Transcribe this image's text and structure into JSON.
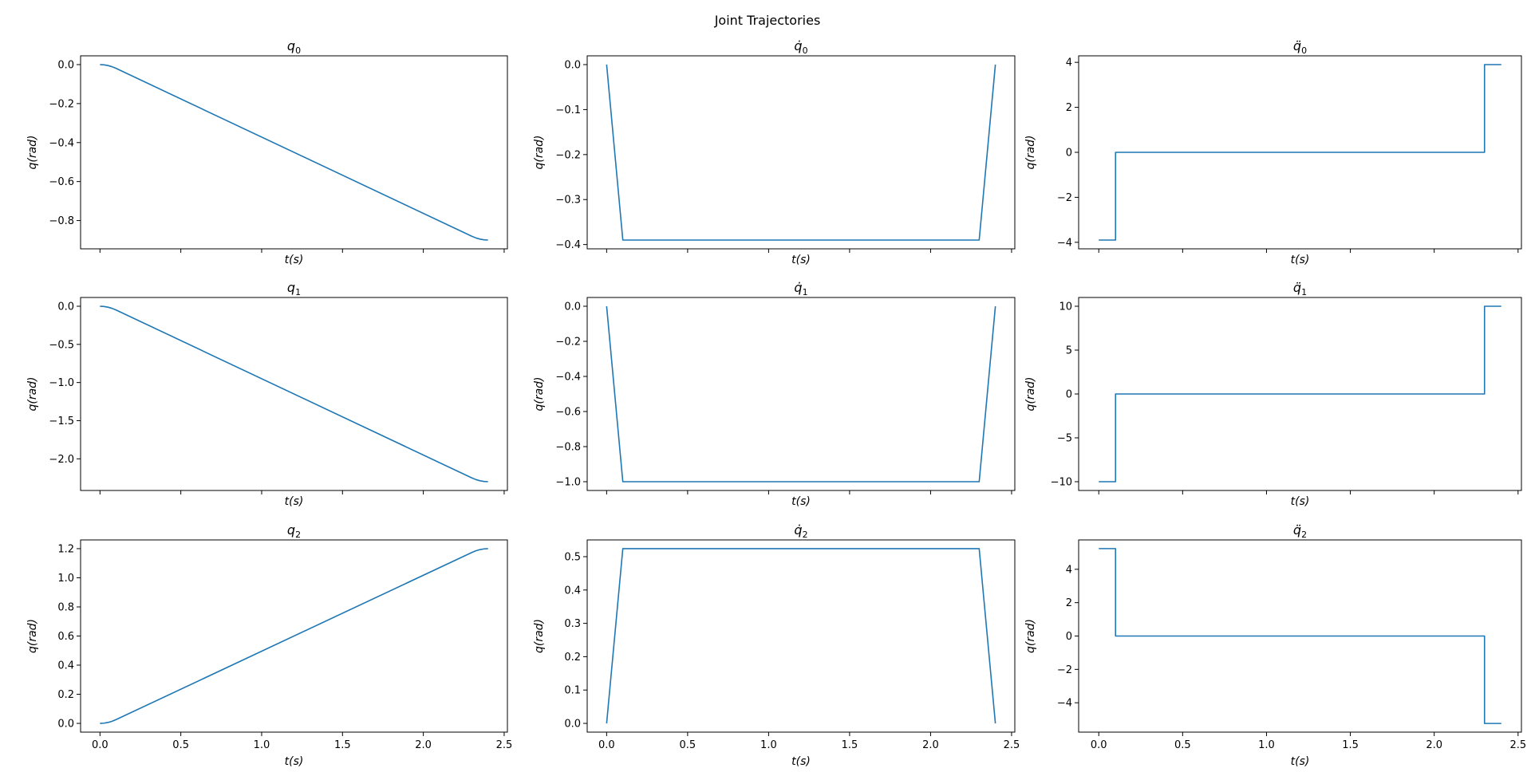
{
  "title": "Joint Trajectories",
  "style": {
    "line_color": "#1f77b4",
    "frame_color": "#000000",
    "background": "#ffffff"
  },
  "chart_data": [
    {
      "type": "line",
      "title": "q_0",
      "xlabel": "t(s)",
      "ylabel": "q(rad)",
      "xlim": [
        -0.12,
        2.52
      ],
      "ylim": [
        -0.945,
        0.045
      ],
      "yticks": [
        0.0,
        -0.2,
        -0.4,
        -0.6,
        -0.8
      ],
      "ytick_labels": [
        "0.0",
        "−0.2",
        "−0.4",
        "−0.6",
        "−0.8"
      ],
      "x": [
        0,
        0.025,
        0.05,
        0.075,
        0.1,
        2.3,
        2.325,
        2.35,
        2.375,
        2.4
      ],
      "values": [
        0,
        -0.00122,
        -0.00488,
        -0.01098,
        -0.01951,
        -0.8805,
        -0.88902,
        -0.89512,
        -0.89878,
        -0.9
      ]
    },
    {
      "type": "line",
      "title": "q̇_0",
      "xlabel": "t(s)",
      "ylabel": "q(rad)",
      "xlim": [
        -0.12,
        2.52
      ],
      "ylim": [
        -0.4095,
        0.0195
      ],
      "yticks": [
        0.0,
        -0.1,
        -0.2,
        -0.3,
        -0.4
      ],
      "ytick_labels": [
        "0.0",
        "−0.1",
        "−0.2",
        "−0.3",
        "−0.4"
      ],
      "x": [
        0,
        0.1,
        2.3,
        2.4
      ],
      "values": [
        0,
        -0.39,
        -0.39,
        0
      ]
    },
    {
      "type": "line",
      "title": "q̈_0",
      "xlabel": "t(s)",
      "ylabel": "q(rad)",
      "xlim": [
        -0.12,
        2.52
      ],
      "ylim": [
        -4.29,
        4.29
      ],
      "yticks": [
        4,
        2,
        0,
        -2,
        -4
      ],
      "ytick_labels": [
        "4",
        "2",
        "0",
        "−2",
        "−4"
      ],
      "x": [
        0,
        0.1,
        0.1,
        2.3,
        2.3,
        2.4
      ],
      "values": [
        -3.9,
        -3.9,
        0,
        0,
        3.9,
        3.9
      ]
    },
    {
      "type": "line",
      "title": "q_1",
      "xlabel": "t(s)",
      "ylabel": "q(rad)",
      "xlim": [
        -0.12,
        2.52
      ],
      "ylim": [
        -2.415,
        0.115
      ],
      "yticks": [
        0.0,
        -0.5,
        -1.0,
        -1.5,
        -2.0
      ],
      "ytick_labels": [
        "0.0",
        "−0.5",
        "−1.0",
        "−1.5",
        "−2.0"
      ],
      "x": [
        0,
        0.025,
        0.05,
        0.075,
        0.1,
        2.3,
        2.325,
        2.35,
        2.375,
        2.4
      ],
      "values": [
        0,
        -0.00313,
        -0.0125,
        -0.02813,
        -0.05,
        -2.25,
        -2.27188,
        -2.2875,
        -2.29688,
        -2.3
      ]
    },
    {
      "type": "line",
      "title": "q̇_1",
      "xlabel": "t(s)",
      "ylabel": "q(rad)",
      "xlim": [
        -0.12,
        2.52
      ],
      "ylim": [
        -1.05,
        0.05
      ],
      "yticks": [
        0.0,
        -0.2,
        -0.4,
        -0.6,
        -0.8,
        -1.0
      ],
      "ytick_labels": [
        "0.0",
        "−0.2",
        "−0.4",
        "−0.6",
        "−0.8",
        "−1.0"
      ],
      "x": [
        0,
        0.1,
        2.3,
        2.4
      ],
      "values": [
        0,
        -1.0,
        -1.0,
        0
      ]
    },
    {
      "type": "line",
      "title": "q̈_1",
      "xlabel": "t(s)",
      "ylabel": "q(rad)",
      "xlim": [
        -0.12,
        2.52
      ],
      "ylim": [
        -11,
        11
      ],
      "yticks": [
        10,
        5,
        0,
        -5,
        -10
      ],
      "ytick_labels": [
        "10",
        "5",
        "0",
        "−5",
        "−10"
      ],
      "x": [
        0,
        0.1,
        0.1,
        2.3,
        2.3,
        2.4
      ],
      "values": [
        -10,
        -10,
        0,
        0,
        10,
        10
      ]
    },
    {
      "type": "line",
      "title": "q_2",
      "xlabel": "t(s)",
      "ylabel": "q(rad)",
      "xlim": [
        -0.12,
        2.52
      ],
      "ylim": [
        -0.06,
        1.26
      ],
      "yticks": [
        0.0,
        0.2,
        0.4,
        0.6,
        0.8,
        1.0,
        1.2
      ],
      "ytick_labels": [
        "0.0",
        "0.2",
        "0.4",
        "0.6",
        "0.8",
        "1.0",
        "1.2"
      ],
      "x": [
        0,
        0.025,
        0.05,
        0.075,
        0.1,
        2.3,
        2.325,
        2.35,
        2.375,
        2.4
      ],
      "values": [
        0,
        0.00164,
        0.00655,
        0.01474,
        0.0262,
        1.1738,
        1.18526,
        1.19345,
        1.19836,
        1.2
      ],
      "xticks": [
        0.0,
        0.5,
        1.0,
        1.5,
        2.0,
        2.5
      ],
      "xtick_labels": [
        "0.0",
        "0.5",
        "1.0",
        "1.5",
        "2.0",
        "2.5"
      ]
    },
    {
      "type": "line",
      "title": "q̇_2",
      "xlabel": "t(s)",
      "ylabel": "q(rad)",
      "xlim": [
        -0.12,
        2.52
      ],
      "ylim": [
        -0.0262,
        0.5502
      ],
      "yticks": [
        0.0,
        0.1,
        0.2,
        0.3,
        0.4,
        0.5
      ],
      "ytick_labels": [
        "0.0",
        "0.1",
        "0.2",
        "0.3",
        "0.4",
        "0.5"
      ],
      "x": [
        0,
        0.1,
        2.3,
        2.4
      ],
      "values": [
        0,
        0.524,
        0.524,
        0
      ],
      "xticks": [
        0.0,
        0.5,
        1.0,
        1.5,
        2.0,
        2.5
      ],
      "xtick_labels": [
        "0.0",
        "0.5",
        "1.0",
        "1.5",
        "2.0",
        "2.5"
      ]
    },
    {
      "type": "line",
      "title": "q̈_2",
      "xlabel": "t(s)",
      "ylabel": "q(rad)",
      "xlim": [
        -0.12,
        2.52
      ],
      "ylim": [
        -5.76,
        5.76
      ],
      "yticks": [
        4,
        2,
        0,
        -2,
        -4
      ],
      "ytick_labels": [
        "4",
        "2",
        "0",
        "−2",
        "−4"
      ],
      "x": [
        0,
        0.1,
        0.1,
        2.3,
        2.3,
        2.4
      ],
      "values": [
        5.24,
        5.24,
        0,
        0,
        -5.24,
        -5.24
      ],
      "xticks": [
        0.0,
        0.5,
        1.0,
        1.5,
        2.0,
        2.5
      ],
      "xtick_labels": [
        "0.0",
        "0.5",
        "1.0",
        "1.5",
        "2.0",
        "2.5"
      ]
    }
  ]
}
